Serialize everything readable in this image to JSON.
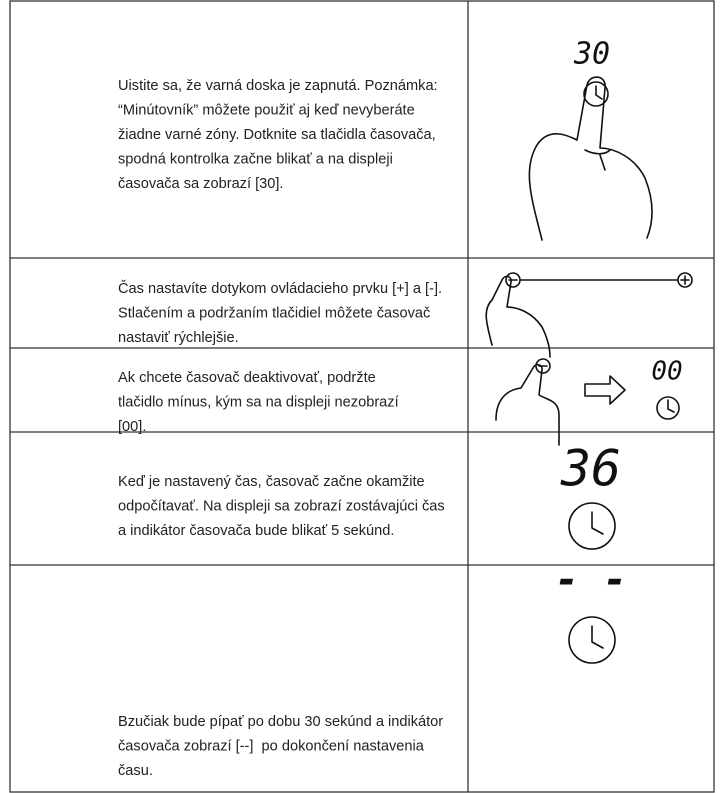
{
  "table": {
    "rows": [
      {
        "lines": [
          "Uistite sa, že varná doska je zapnutá. Poznámka:",
          "“Minútovník” môžete použiť aj keď nevyberáte",
          "žiadne varné zóny. Dotknite sa tlačidla časovača,",
          "spodná kontrolka začne blikať a na displeji",
          "časovača sa zobrazí [30]."
        ],
        "display": "30"
      },
      {
        "lines": [
          "Čas nastavíte dotykom ovládacieho prvku [+] a [-].",
          "Stlačením a podržaním tlačidiel môžete časovač",
          "nastaviť rýchlejšie."
        ]
      },
      {
        "lines": [
          "Ak chcete časovač deaktivovať, podržte",
          "tlačidlo mínus, kým sa na displeji nezobrazí",
          "[00]."
        ],
        "display": "00"
      },
      {
        "lines": [
          "Keď je nastavený čas, časovač začne okamžite",
          "odpočítavať. Na displeji sa zobrazí zostávajúci čas",
          "a indikátor časovača bude blikať 5 sekúnd."
        ],
        "display": "36"
      },
      {
        "lines": [
          "Bzučiak bude pípať po dobu 30 sekúnd a indikátor",
          "časovača zobrazí [--]  po dokončení nastavenia",
          "času."
        ],
        "display": "- -"
      }
    ]
  }
}
